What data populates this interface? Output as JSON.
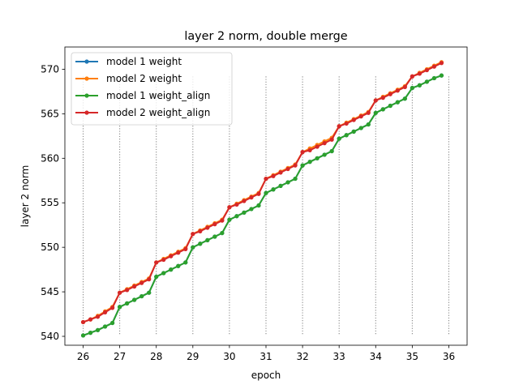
{
  "chart_data": {
    "type": "line",
    "title": "layer 2 norm, double merge",
    "xlabel": "epoch",
    "ylabel": "layer 2 norm",
    "xlim": [
      25.5,
      36.5
    ],
    "ylim": [
      539,
      572.5
    ],
    "xticks": [
      26,
      27,
      28,
      29,
      30,
      31,
      32,
      33,
      34,
      35,
      36
    ],
    "yticks": [
      540,
      545,
      550,
      555,
      560,
      565,
      570
    ],
    "legend_position": "upper-left",
    "grid": false,
    "merge_lines": [
      26,
      27,
      28,
      29,
      30,
      31,
      32,
      33,
      34,
      35,
      36
    ],
    "x": [
      26.0,
      26.2,
      26.4,
      26.6,
      26.8,
      27.0,
      27.2,
      27.4,
      27.6,
      27.8,
      28.0,
      28.2,
      28.4,
      28.6,
      28.8,
      29.0,
      29.2,
      29.4,
      29.6,
      29.8,
      30.0,
      30.2,
      30.4,
      30.6,
      30.8,
      31.0,
      31.2,
      31.4,
      31.6,
      31.8,
      32.0,
      32.2,
      32.4,
      32.6,
      32.8,
      33.0,
      33.2,
      33.4,
      33.6,
      33.8,
      34.0,
      34.2,
      34.4,
      34.6,
      34.8,
      35.0,
      35.2,
      35.4,
      35.6,
      35.8
    ],
    "series": [
      {
        "name": "model 1 weight",
        "color": "#1f77b4",
        "values": [
          540.1,
          540.4,
          540.7,
          541.1,
          541.5,
          543.3,
          543.7,
          544.1,
          544.5,
          544.9,
          546.7,
          547.1,
          547.5,
          547.9,
          548.3,
          550.0,
          550.4,
          550.8,
          551.2,
          551.6,
          553.1,
          553.5,
          553.9,
          554.3,
          554.7,
          556.1,
          556.5,
          556.9,
          557.3,
          557.7,
          559.2,
          559.6,
          560.0,
          560.4,
          560.8,
          562.2,
          562.6,
          563.0,
          563.4,
          563.8,
          565.1,
          565.5,
          565.9,
          566.3,
          566.7,
          567.9,
          568.2,
          568.6,
          569.0,
          569.3
        ]
      },
      {
        "name": "model 2 weight",
        "color": "#ff7f0e",
        "values": [
          541.6,
          541.9,
          542.3,
          542.8,
          543.3,
          544.9,
          545.3,
          545.7,
          546.1,
          546.5,
          548.3,
          548.7,
          549.1,
          549.5,
          549.9,
          551.5,
          551.9,
          552.3,
          552.7,
          553.1,
          554.5,
          554.9,
          555.3,
          555.7,
          556.1,
          557.7,
          558.1,
          558.5,
          558.9,
          559.3,
          560.7,
          561.1,
          561.5,
          561.9,
          562.3,
          563.6,
          564.0,
          564.4,
          564.8,
          565.2,
          566.5,
          566.9,
          567.3,
          567.7,
          568.1,
          569.2,
          569.6,
          570.0,
          570.4,
          570.8
        ]
      },
      {
        "name": "model 1 weight_align",
        "color": "#2ca02c",
        "values": [
          540.1,
          540.4,
          540.7,
          541.1,
          541.5,
          543.3,
          543.7,
          544.1,
          544.5,
          544.9,
          546.7,
          547.1,
          547.5,
          547.9,
          548.3,
          550.0,
          550.4,
          550.8,
          551.2,
          551.6,
          553.1,
          553.5,
          553.9,
          554.3,
          554.7,
          556.1,
          556.5,
          556.9,
          557.3,
          557.7,
          559.2,
          559.6,
          560.0,
          560.4,
          560.8,
          562.2,
          562.6,
          563.0,
          563.4,
          563.8,
          565.1,
          565.5,
          565.9,
          566.3,
          566.7,
          567.9,
          568.2,
          568.6,
          569.0,
          569.3
        ]
      },
      {
        "name": "model 2 weight_align",
        "color": "#d62728",
        "values": [
          541.6,
          541.9,
          542.2,
          542.7,
          543.2,
          544.9,
          545.2,
          545.6,
          546.0,
          546.4,
          548.3,
          548.6,
          549.0,
          549.4,
          549.8,
          551.5,
          551.8,
          552.2,
          552.6,
          553.0,
          554.5,
          554.8,
          555.2,
          555.6,
          556.0,
          557.7,
          558.0,
          558.4,
          558.8,
          559.2,
          560.7,
          560.9,
          561.3,
          561.7,
          562.1,
          563.6,
          563.9,
          564.3,
          564.7,
          565.1,
          566.5,
          566.8,
          567.2,
          567.6,
          568.0,
          569.2,
          569.5,
          569.9,
          570.3,
          570.7
        ]
      }
    ]
  }
}
